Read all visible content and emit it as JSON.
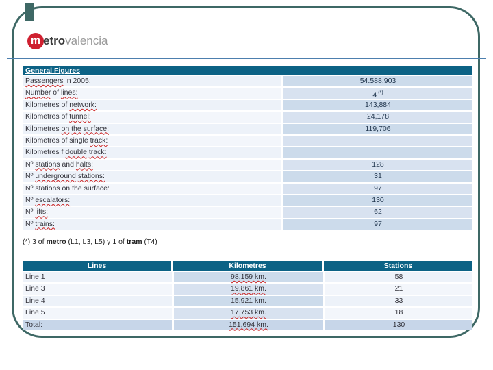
{
  "colors": {
    "border": "#3e6865",
    "header_bg": "#0c6285",
    "line": "#4d7fae",
    "logo_red": "#cf2030",
    "cell_blue": "#ccdbeb",
    "cell_blue_alt": "#d8e2f0",
    "cell_pale": "#edf2f9",
    "cell_pale_alt": "#f3f6fb",
    "total_bg": "#c7d6e9",
    "wavy": "#cc2222"
  },
  "logo": {
    "circle_letter": "m",
    "bold_part": "etro",
    "light_part": "valencia"
  },
  "general_table": {
    "title": "General Figures",
    "rows": [
      {
        "label": "Passengers in 2005:",
        "value": "54.588.903",
        "wavy": [
          "Passengers"
        ],
        "value_sup": ""
      },
      {
        "label": "Number of lines:",
        "value": "4",
        "wavy": [
          "Number",
          "lines:"
        ],
        "value_sup": "(*)"
      },
      {
        "label": "Kilometres of network:",
        "value": "143,884",
        "wavy": [
          "network:"
        ],
        "value_sup": ""
      },
      {
        "label": "Kilometres of tunnel:",
        "value": "24,178",
        "wavy": [
          "tunnel:"
        ],
        "value_sup": ""
      },
      {
        "label": "Kilometres on the surface:",
        "value": "119,706",
        "wavy": [
          "on",
          "the",
          "surface:"
        ],
        "value_sup": ""
      },
      {
        "label": "Kilometres of single track:",
        "value": "",
        "wavy": [
          "track:"
        ],
        "value_sup": ""
      },
      {
        "label": "Kilometres f double track:",
        "value": "",
        "wavy": [
          "double",
          "track:"
        ],
        "value_sup": ""
      },
      {
        "label": "Nº stations and halts:",
        "value": "128",
        "wavy": [
          "stations",
          "halts:"
        ],
        "value_sup": ""
      },
      {
        "label": "Nº underground stations:",
        "value": "31",
        "wavy": [
          "underground",
          "stations:"
        ],
        "value_sup": ""
      },
      {
        "label": "Nº stations on the surface:",
        "value": "97",
        "wavy": [],
        "value_sup": ""
      },
      {
        "label": "Nº escalators:",
        "value": "130",
        "wavy": [
          "escalators:"
        ],
        "value_sup": ""
      },
      {
        "label": "Nº lifts:",
        "value": "62",
        "wavy": [
          "lifts:"
        ],
        "value_sup": ""
      },
      {
        "label": "Nº trains:",
        "value": "97",
        "wavy": [
          "trains:"
        ],
        "value_sup": ""
      }
    ]
  },
  "footnote": {
    "parts": [
      {
        "text": "(*) 3 of ",
        "bold": false
      },
      {
        "text": "metro",
        "bold": true
      },
      {
        "text": " (L1, L3, L5) y 1 of ",
        "bold": false
      },
      {
        "text": "tram",
        "bold": true
      },
      {
        "text": " (T4)",
        "bold": false
      }
    ]
  },
  "lines_table": {
    "headers": [
      "Lines",
      "Kilometres",
      "Stations"
    ],
    "rows": [
      {
        "line": "Line 1",
        "km": "98,159 km.",
        "stations": "58",
        "km_wavy": true,
        "total": false
      },
      {
        "line": "Line 3",
        "km": "19,861 km.",
        "stations": "21",
        "km_wavy": true,
        "total": false
      },
      {
        "line": "Line 4",
        "km": "15,921 km.",
        "stations": "33",
        "km_wavy": false,
        "total": false
      },
      {
        "line": "Line 5",
        "km": "17,753 km.",
        "stations": "18",
        "km_wavy": true,
        "total": false
      },
      {
        "line": "Total:",
        "km": "151,694 km.",
        "stations": "130",
        "km_wavy": true,
        "total": true
      }
    ]
  }
}
